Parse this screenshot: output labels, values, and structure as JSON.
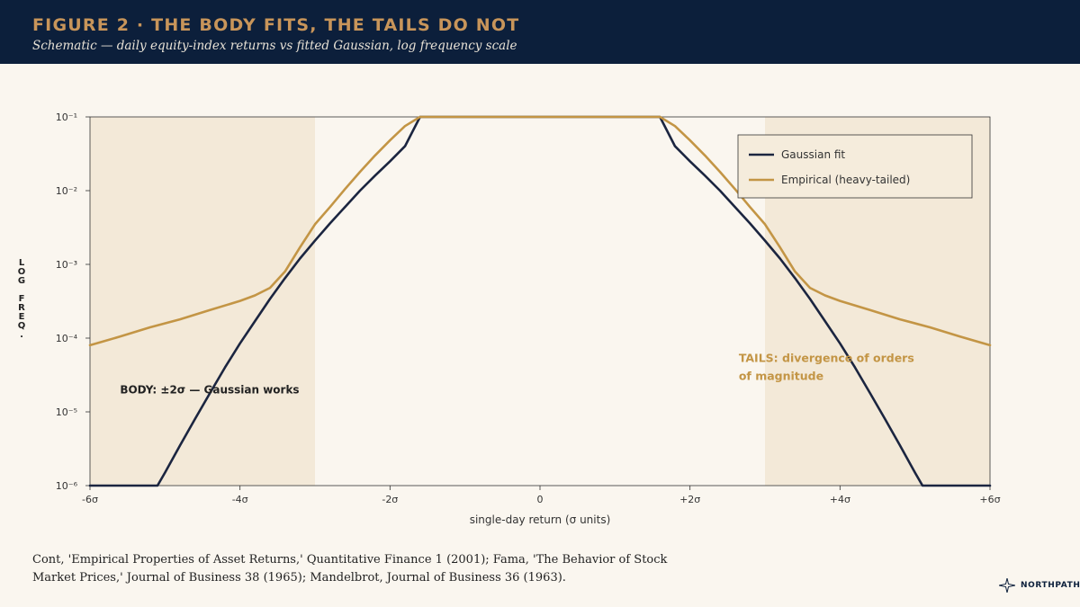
{
  "header": {
    "title": "FIGURE 2  ·  THE BODY FITS, THE TAILS DO NOT",
    "subtitle": "Schematic — daily equity-index returns vs fitted Gaussian, log frequency scale"
  },
  "colors": {
    "header_bg": "#0c1f3b",
    "title": "#c8955a",
    "gaussian": "#1b2540",
    "empirical": "#c39545",
    "band": "#f3e9d8",
    "background": "#faf6ef"
  },
  "chart_data": {
    "type": "line",
    "title": "",
    "xlabel": "single-day return (σ units)",
    "ylabel": "LOG FREQ.",
    "y_scale": "log",
    "xlim": [
      -6,
      6
    ],
    "ylim": [
      1e-06,
      0.1
    ],
    "x_ticks": [
      -6,
      -4,
      -2,
      0,
      2,
      4,
      6
    ],
    "x_tick_labels": [
      "-6σ",
      "-4σ",
      "-2σ",
      "0",
      "+2σ",
      "+4σ",
      "+6σ"
    ],
    "y_ticks": [
      0.1,
      0.01,
      0.001,
      0.0001,
      1e-05,
      1e-06
    ],
    "y_tick_labels": [
      "10⁻¹",
      "10⁻²",
      "10⁻³",
      "10⁻⁴",
      "10⁻⁵",
      "10⁻⁶"
    ],
    "grid": false,
    "legend_position": "top-right",
    "shaded_regions": [
      {
        "x_from": -6,
        "x_to": -3
      },
      {
        "x_from": 3,
        "x_to": 6
      }
    ],
    "series": [
      {
        "name": "Gaussian fit",
        "color": "#1b2540",
        "x": [
          -6,
          -5.1,
          -5,
          -4.8,
          -4.6,
          -4.4,
          -4.2,
          -4,
          -3.8,
          -3.6,
          -3.4,
          -3.2,
          -3,
          -2.8,
          -2.6,
          -2.4,
          -2.2,
          -2,
          -1.8,
          -1.6,
          -1.2,
          -0.8,
          -0.4,
          0,
          0.4,
          0.8,
          1.2,
          1.6,
          1.8,
          2,
          2.2,
          2.4,
          2.6,
          2.8,
          3,
          3.2,
          3.4,
          3.6,
          3.8,
          4,
          4.2,
          4.4,
          4.6,
          4.8,
          5,
          5.1,
          6
        ],
        "values": [
          1e-06,
          1e-06,
          1.5e-06,
          3.5e-06,
          8e-06,
          1.8e-05,
          4e-05,
          8.5e-05,
          0.00017,
          0.00034,
          0.00065,
          0.0012,
          0.0021,
          0.0036,
          0.006,
          0.01,
          0.016,
          0.025,
          0.04,
          0.1,
          0.1,
          0.1,
          0.1,
          0.1,
          0.1,
          0.1,
          0.1,
          0.1,
          0.04,
          0.025,
          0.016,
          0.01,
          0.006,
          0.0036,
          0.0021,
          0.0012,
          0.00065,
          0.00034,
          0.00017,
          8.5e-05,
          4e-05,
          1.8e-05,
          8e-06,
          3.5e-06,
          1.5e-06,
          1e-06,
          1e-06
        ]
      },
      {
        "name": "Empirical (heavy-tailed)",
        "color": "#c39545",
        "x": [
          -6,
          -5.6,
          -5.2,
          -4.8,
          -4.4,
          -4,
          -3.8,
          -3.6,
          -3.4,
          -3.2,
          -3,
          -2.8,
          -2.6,
          -2.4,
          -2.2,
          -2,
          -1.8,
          -1.6,
          -1.2,
          -0.8,
          -0.4,
          0,
          0.4,
          0.8,
          1.2,
          1.6,
          1.8,
          2,
          2.2,
          2.4,
          2.6,
          2.8,
          3,
          3.2,
          3.4,
          3.6,
          3.8,
          4,
          4.4,
          4.8,
          5.2,
          5.6,
          6
        ],
        "values": [
          8e-05,
          0.000105,
          0.00014,
          0.00018,
          0.00024,
          0.00032,
          0.00038,
          0.00048,
          0.0008,
          0.0017,
          0.0035,
          0.006,
          0.0105,
          0.018,
          0.03,
          0.048,
          0.075,
          0.1,
          0.1,
          0.1,
          0.1,
          0.1,
          0.1,
          0.1,
          0.1,
          0.1,
          0.075,
          0.048,
          0.03,
          0.018,
          0.0105,
          0.006,
          0.0035,
          0.0017,
          0.0008,
          0.00048,
          0.00038,
          0.00032,
          0.00024,
          0.00018,
          0.00014,
          0.000105,
          8e-05
        ]
      }
    ],
    "annotations": [
      {
        "text": "BODY: ±2σ — Gaussian works",
        "x": -5.6,
        "y": 2e-05,
        "color": "#1b2540"
      },
      {
        "text": "TAILS: divergence of orders of magnitude",
        "x": 2.65,
        "y": 4e-05,
        "color": "#c39545"
      }
    ]
  },
  "footer": {
    "source": "Cont, 'Empirical Properties of Asset Returns,' Quantitative Finance 1 (2001); Fama, 'The Behavior of Stock Market Prices,' Journal of Business 38 (1965); Mandelbrot, Journal of Business 36 (1963).",
    "logo_text": "NORTHPATH",
    "logo_icon": "compass-star-icon"
  }
}
